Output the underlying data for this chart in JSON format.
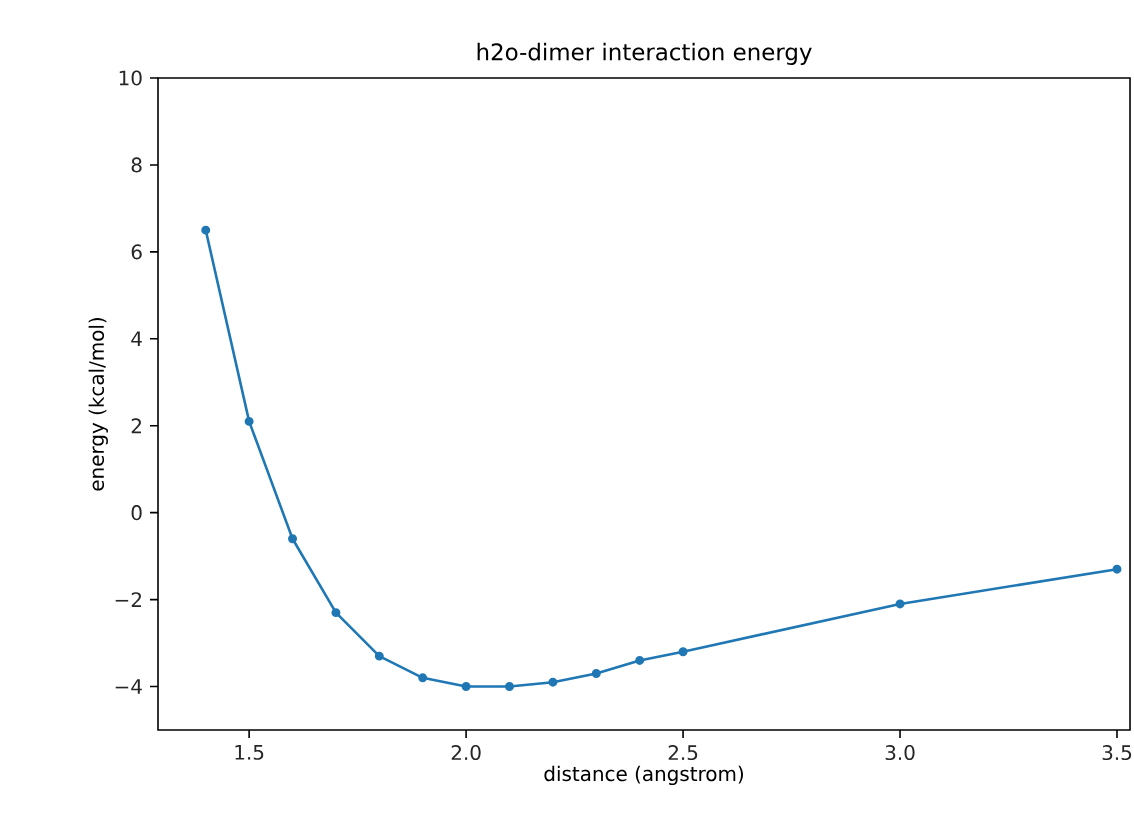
{
  "chart_data": {
    "type": "line",
    "title": "h2o-dimer interaction energy",
    "xlabel": "distance (angstrom)",
    "ylabel": "energy (kcal/mol)",
    "x": [
      1.4,
      1.5,
      1.6,
      1.7,
      1.8,
      1.9,
      2.0,
      2.1,
      2.2,
      2.3,
      2.4,
      2.5,
      3.0,
      3.5
    ],
    "series": [
      {
        "color": "#1f77b4",
        "values": [
          6.5,
          2.1,
          -0.6,
          -2.3,
          -3.3,
          -3.8,
          -4.0,
          -4.0,
          -3.9,
          -3.7,
          -3.4,
          -3.2,
          -2.1,
          -1.3
        ]
      }
    ],
    "xlim": [
      1.29,
      3.53
    ],
    "ylim": [
      -5,
      10
    ],
    "xticks": [
      1.5,
      {
        "value": 2,
        "label": "2.0"
      },
      2.5,
      {
        "value": 3,
        "label": "3.0"
      },
      3.5
    ],
    "yticks": [
      {
        "value": -4,
        "label": "−4"
      },
      {
        "value": -2,
        "label": "−2"
      },
      0,
      2,
      4,
      6,
      8,
      10
    ],
    "marker": "circle",
    "line_style": "solid"
  }
}
